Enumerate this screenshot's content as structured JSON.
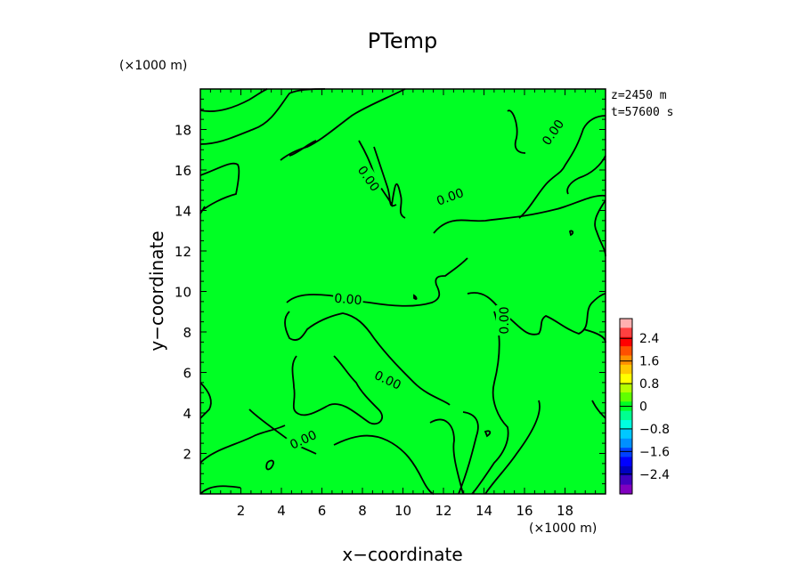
{
  "chart_data": {
    "type": "contour",
    "title": "PTemp",
    "xlabel": "x−coordinate",
    "ylabel": "y−coordinate",
    "x_unit": "(×1000 m)",
    "y_unit": "(×1000 m)",
    "xlim": [
      0,
      20
    ],
    "ylim": [
      0,
      20
    ],
    "x_ticks": [
      "2",
      "4",
      "6",
      "8",
      "10",
      "12",
      "14",
      "16",
      "18"
    ],
    "y_ticks": [
      "2",
      "4",
      "6",
      "8",
      "10",
      "12",
      "14",
      "16",
      "18"
    ],
    "z_label": "z=2450 m",
    "t_label": "t=57600 s",
    "field_value": 0,
    "field_color": "#00ff24",
    "contour_levels": [
      0
    ],
    "contour_label_text": "0.00",
    "colorbar": {
      "labels": [
        "2.4",
        "1.6",
        "0.8",
        "0",
        "−0.8",
        "−1.6",
        "−2.4"
      ],
      "colors": [
        "#ffb0b0",
        "#ff4040",
        "#ff0000",
        "#ff5000",
        "#ff9000",
        "#ffc800",
        "#ffff00",
        "#b4ff00",
        "#60ff00",
        "#00ff24",
        "#00ff90",
        "#00ffe0",
        "#00c8ff",
        "#0090ff",
        "#0040ff",
        "#0000ff",
        "#0000c0",
        "#4000c0",
        "#8000c0"
      ]
    }
  }
}
